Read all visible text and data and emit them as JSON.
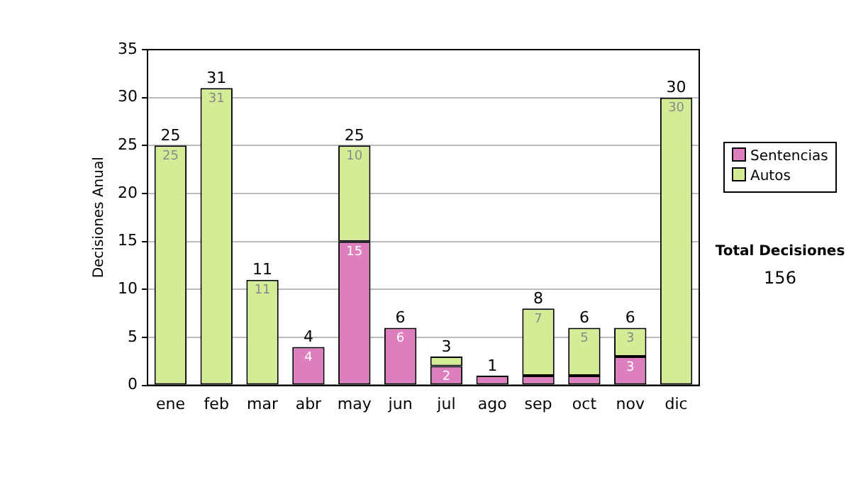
{
  "chart_data": {
    "type": "bar",
    "stacked": true,
    "categories": [
      "ene",
      "feb",
      "mar",
      "abr",
      "may",
      "jun",
      "jul",
      "ago",
      "sep",
      "oct",
      "nov",
      "dic"
    ],
    "ylabel": "Decisiones Anual",
    "ylim": [
      0,
      35
    ],
    "yticks": [
      0,
      5,
      10,
      15,
      20,
      25,
      30,
      35
    ],
    "grid": "y",
    "legend": "right",
    "series": [
      {
        "name": "Sentencias",
        "color": "#dd7fbf",
        "values": [
          0,
          0,
          0,
          4,
          15,
          6,
          2,
          1,
          1,
          1,
          3,
          0
        ],
        "value_labels": [
          null,
          null,
          null,
          "4",
          "15",
          "6",
          "2",
          null,
          null,
          null,
          "3",
          null
        ]
      },
      {
        "name": "Autos",
        "color": "#d3ec95",
        "values": [
          25,
          31,
          11,
          0,
          10,
          0,
          1,
          0,
          7,
          5,
          3,
          30
        ],
        "value_labels": [
          "25",
          "31",
          "11",
          null,
          "10",
          null,
          null,
          null,
          "7",
          "5",
          "3",
          "30"
        ]
      }
    ],
    "totals": [
      "25",
      "31",
      "11",
      "4",
      "25",
      "6",
      "3",
      "1",
      "8",
      "6",
      "6",
      "30"
    ],
    "annotations": [
      "Total Decisiones",
      "156"
    ]
  }
}
